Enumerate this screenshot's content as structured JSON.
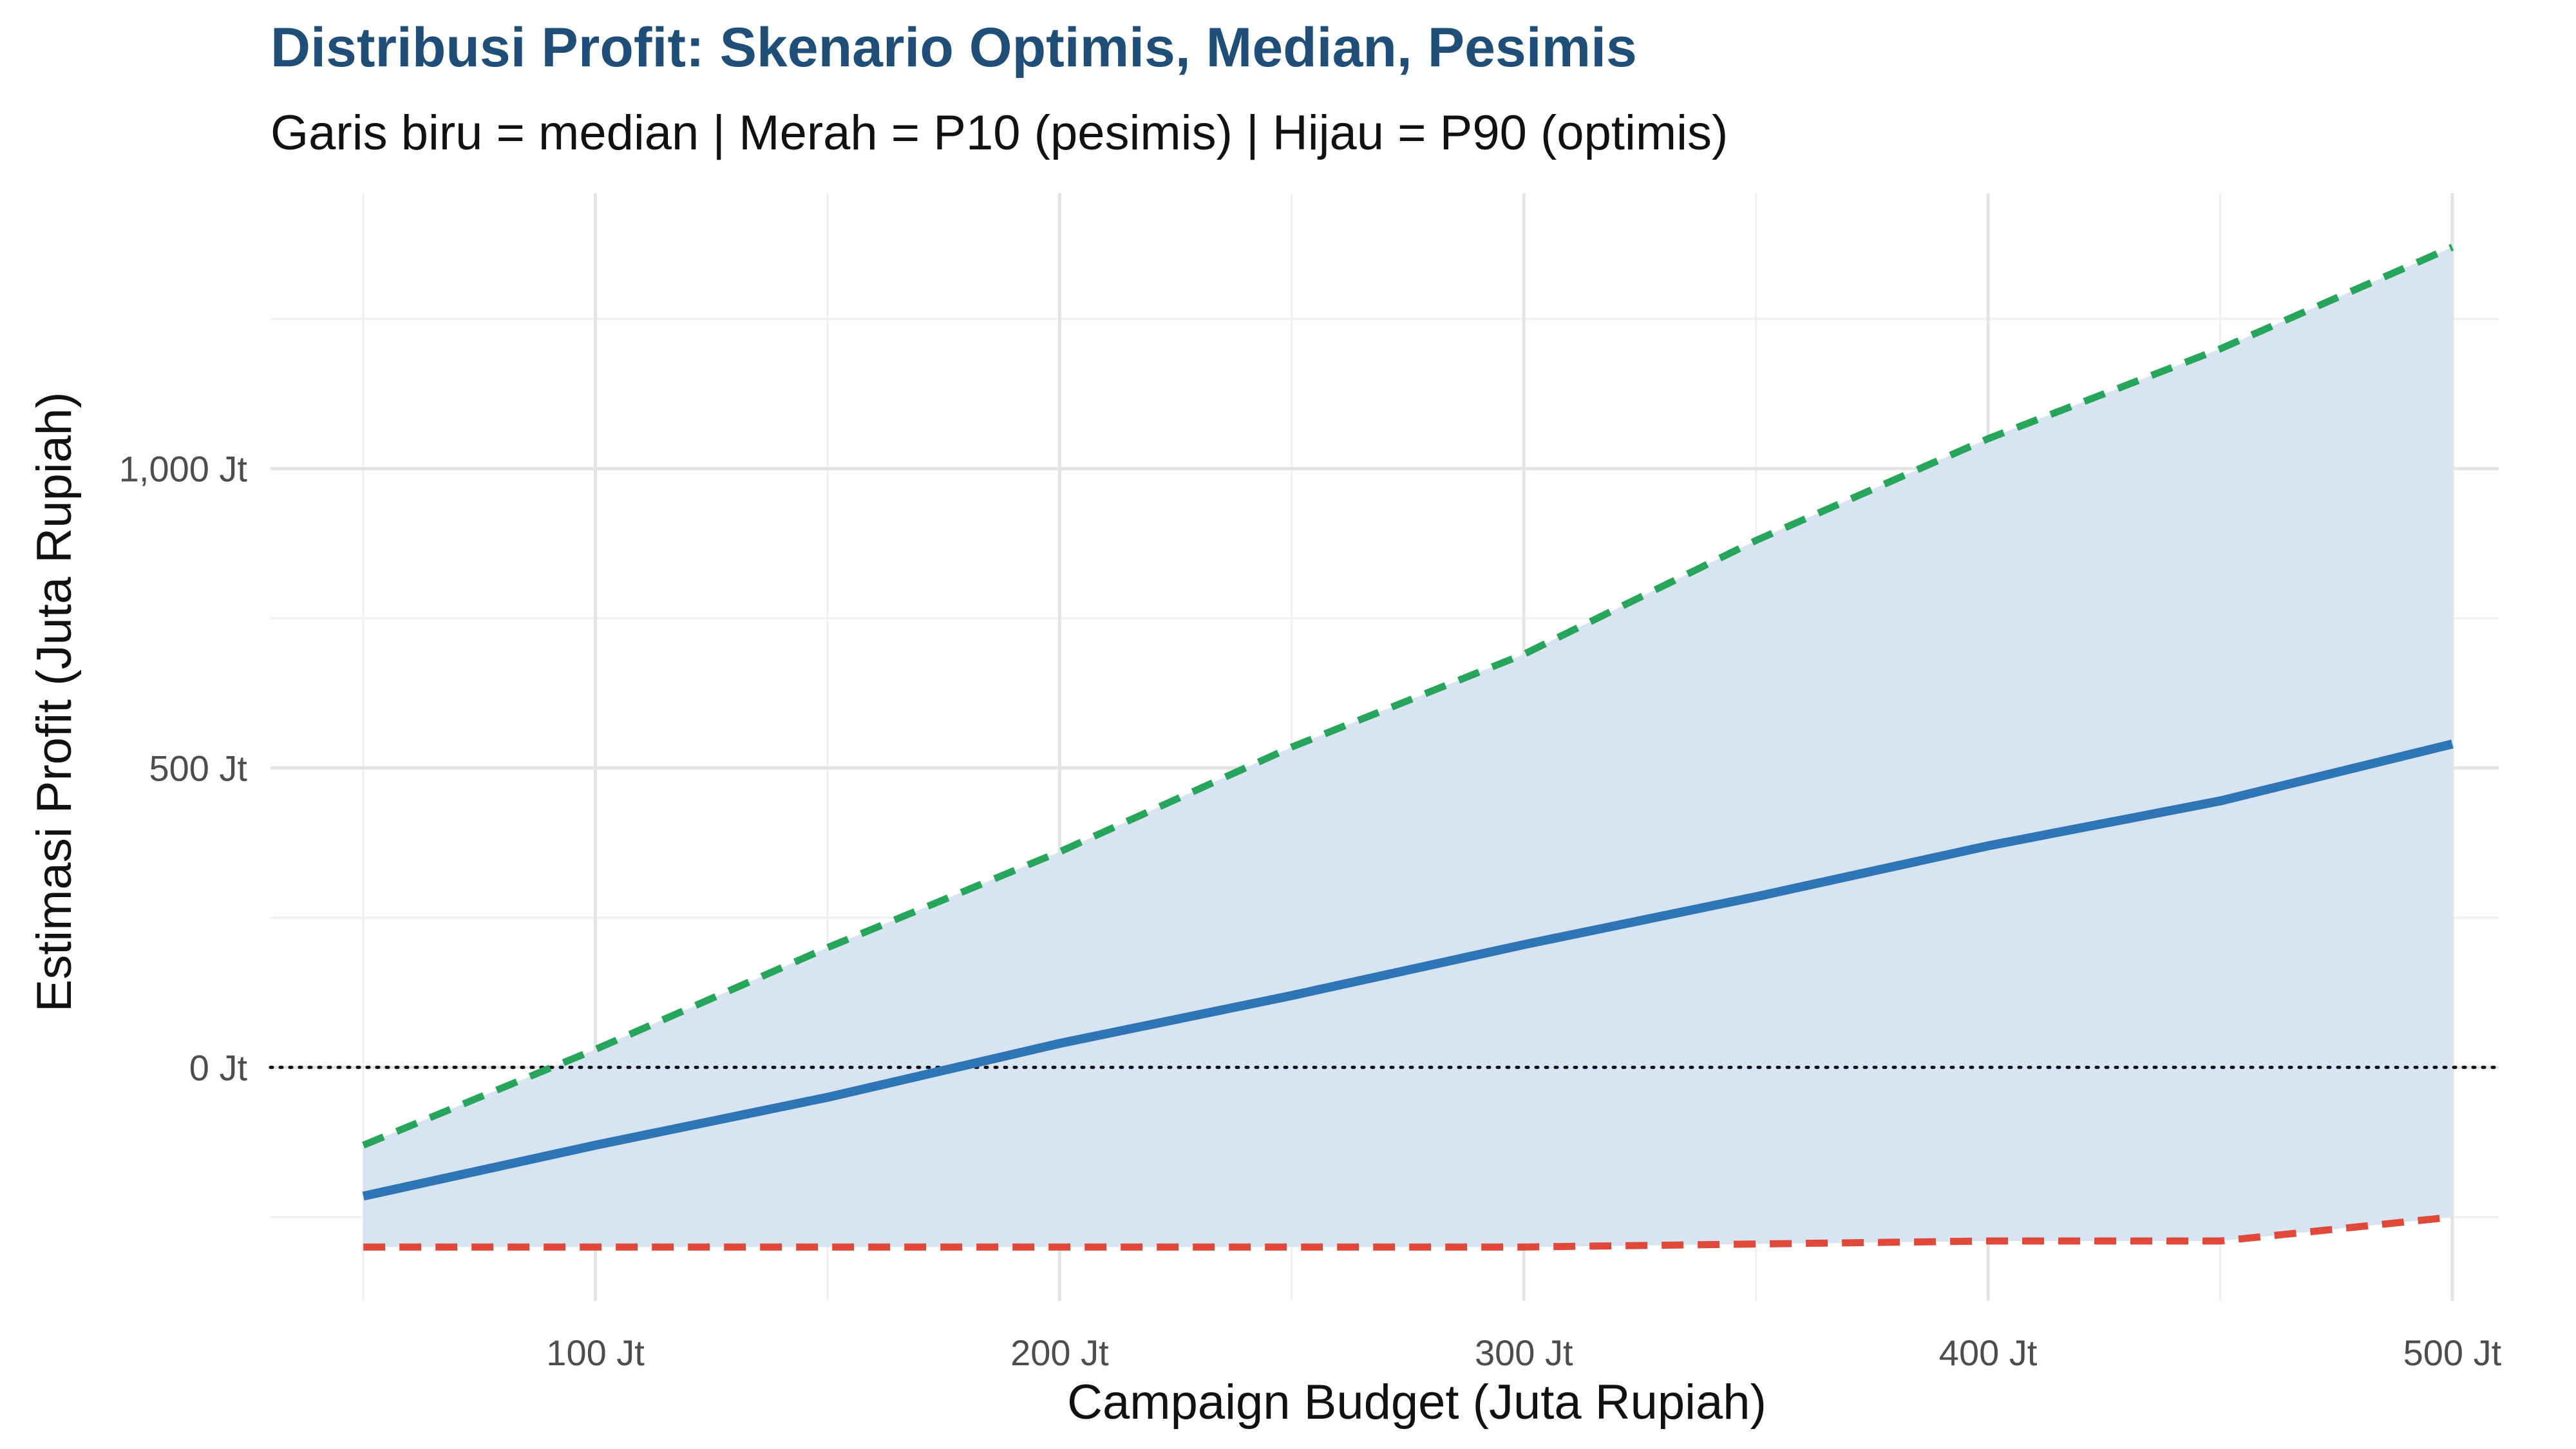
{
  "chart_data": {
    "type": "line",
    "title": "Distribusi Profit: Skenario Optimis, Median, Pesimis",
    "subtitle": "Garis biru = median | Merah = P10 (pesimis) | Hijau = P90 (optimis)",
    "xlabel": "Campaign Budget (Juta Rupiah)",
    "ylabel": "Estimasi Profit (Juta Rupiah)",
    "xlim": [
      30,
      510
    ],
    "ylim": [
      -390,
      1460
    ],
    "x_ticks": [
      100,
      200,
      300,
      400,
      500
    ],
    "x_tick_labels": [
      "100 Jt",
      "200 Jt",
      "300 Jt",
      "400 Jt",
      "500 Jt"
    ],
    "y_ticks": [
      0,
      500,
      1000
    ],
    "y_tick_labels": [
      "0 Jt",
      "500 Jt",
      "1,000 Jt"
    ],
    "reference_line": {
      "y": 0,
      "style": "dotted"
    },
    "band": {
      "lower": "P10",
      "upper": "P90",
      "color": "#d6e3f0"
    },
    "x": [
      50,
      100,
      150,
      200,
      250,
      300,
      350,
      400,
      450,
      500
    ],
    "series": [
      {
        "name": "P90 (optimis)",
        "color": "#27a55a",
        "dash": "dashed",
        "values": [
          -130,
          30,
          200,
          360,
          535,
          690,
          880,
          1050,
          1200,
          1370
        ]
      },
      {
        "name": "median",
        "color": "#2e75b6",
        "dash": "solid",
        "values": [
          -215,
          -130,
          -50,
          40,
          120,
          205,
          285,
          370,
          445,
          540
        ]
      },
      {
        "name": "P10 (pesimis)",
        "color": "#e0483a",
        "dash": "dashed",
        "values": [
          -300,
          -300,
          -300,
          -300,
          -300,
          -300,
          -295,
          -290,
          -290,
          -250
        ]
      }
    ]
  }
}
